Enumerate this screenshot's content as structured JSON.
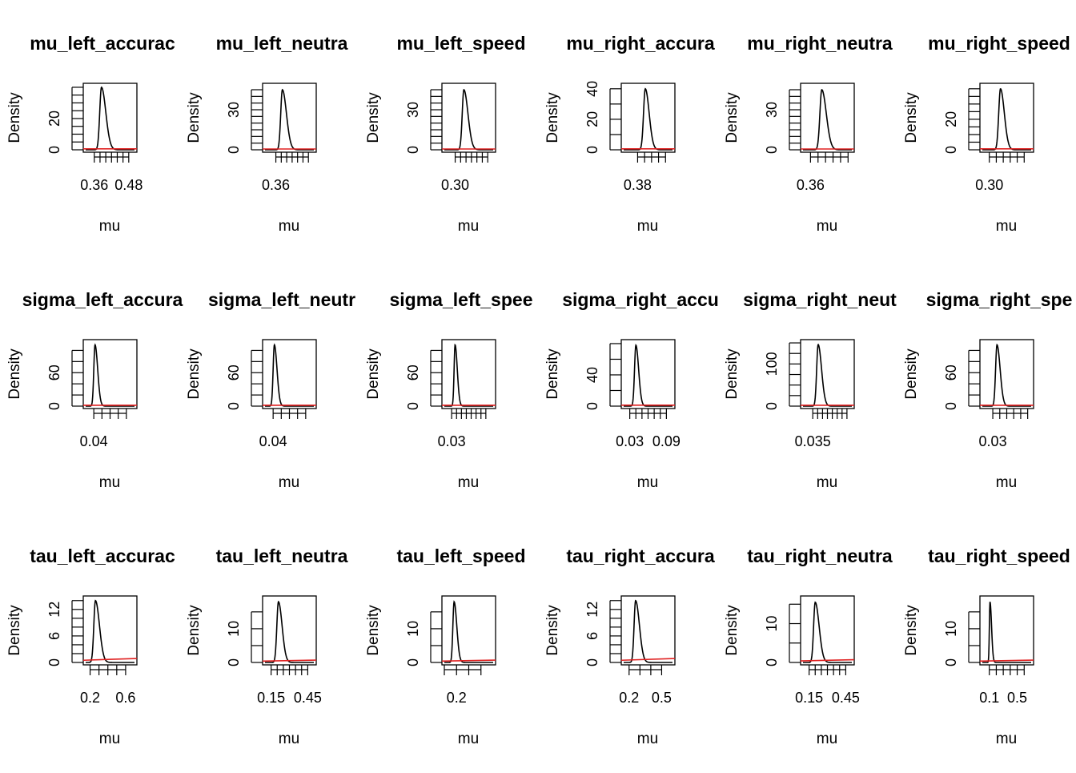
{
  "figure": {
    "xlabel_default": "mu",
    "ylabel_default": "Density",
    "curve_color": "#000000",
    "prior_color": "#e02020"
  },
  "chart_data": [
    {
      "type": "line",
      "title": "mu_left_accurac",
      "xlabel": "mu",
      "ylabel": "Density",
      "xlim": [
        0.33,
        0.5
      ],
      "ylim": [
        0,
        41
      ],
      "xticks": [
        0.36,
        0.38,
        0.4,
        0.42,
        0.44,
        0.46,
        0.48
      ],
      "xtick_labels": {
        "0.36": "0.36",
        "0.48": "0.48"
      },
      "yticks": [
        0,
        5,
        10,
        15,
        20,
        25,
        30,
        35,
        40
      ],
      "ytick_labels": {
        "0": "0",
        "20": "20"
      },
      "peak": {
        "x": 0.385,
        "y": 40
      },
      "sd_left": 0.006,
      "sd_right": 0.015,
      "prior_level": [
        0.6,
        0.6
      ]
    },
    {
      "type": "line",
      "title": "mu_left_neutra",
      "xlabel": "mu",
      "ylabel": "Density",
      "xlim": [
        0.34,
        0.43
      ],
      "ylim": [
        0,
        48
      ],
      "xticks": [
        0.36,
        0.37,
        0.38,
        0.39,
        0.4,
        0.41,
        0.42
      ],
      "xtick_labels": {
        "0.36": "0.36"
      },
      "yticks": [
        0,
        5,
        10,
        15,
        20,
        25,
        30,
        35,
        40,
        45
      ],
      "ytick_labels": {
        "0": "0",
        "30": "30"
      },
      "peak": {
        "x": 0.372,
        "y": 45
      },
      "sd_left": 0.003,
      "sd_right": 0.0075,
      "prior_level": [
        0.6,
        0.6
      ]
    },
    {
      "type": "line",
      "title": "mu_left_speed",
      "xlabel": "mu",
      "ylabel": "Density",
      "xlim": [
        0.28,
        0.37
      ],
      "ylim": [
        0,
        48
      ],
      "xticks": [
        0.3,
        0.31,
        0.32,
        0.33,
        0.34,
        0.35,
        0.36
      ],
      "xtick_labels": {
        "0.30": "0.30"
      },
      "yticks": [
        0,
        5,
        10,
        15,
        20,
        25,
        30,
        35,
        40,
        45
      ],
      "ytick_labels": {
        "0": "0",
        "30": "30"
      },
      "peak": {
        "x": 0.316,
        "y": 45
      },
      "sd_left": 0.003,
      "sd_right": 0.0075,
      "prior_level": [
        0.6,
        0.6
      ]
    },
    {
      "type": "line",
      "title": "mu_right_accura",
      "xlabel": "mu",
      "ylabel": "Density",
      "xlim": [
        0.36,
        0.43
      ],
      "ylim": [
        0,
        42
      ],
      "xticks": [
        0.38,
        0.39,
        0.4,
        0.41,
        0.42
      ],
      "xtick_labels": {
        "0.38": "0.38"
      },
      "yticks": [
        0,
        10,
        20,
        30,
        40
      ],
      "ytick_labels": {
        "0": "0",
        "20": "20",
        "40": "40"
      },
      "peak": {
        "x": 0.391,
        "y": 40
      },
      "sd_left": 0.0025,
      "sd_right": 0.0055,
      "prior_level": [
        0.6,
        0.6
      ]
    },
    {
      "type": "line",
      "title": "mu_right_neutra",
      "xlabel": "mu",
      "ylabel": "Density",
      "xlim": [
        0.35,
        0.415
      ],
      "ylim": [
        0,
        48
      ],
      "xticks": [
        0.36,
        0.37,
        0.38,
        0.39,
        0.4,
        0.41
      ],
      "xtick_labels": {
        "0.36": "0.36"
      },
      "yticks": [
        0,
        5,
        10,
        15,
        20,
        25,
        30,
        35,
        40,
        45
      ],
      "ytick_labels": {
        "0": "0",
        "30": "30"
      },
      "peak": {
        "x": 0.375,
        "y": 45
      },
      "sd_left": 0.0025,
      "sd_right": 0.006,
      "prior_level": [
        0.6,
        0.6
      ]
    },
    {
      "type": "line",
      "title": "mu_right_speed",
      "xlabel": "mu",
      "ylabel": "Density",
      "xlim": [
        0.29,
        0.36
      ],
      "ylim": [
        0,
        42
      ],
      "xticks": [
        0.3,
        0.31,
        0.32,
        0.33,
        0.34,
        0.35
      ],
      "xtick_labels": {
        "0.30": "0.30"
      },
      "yticks": [
        0,
        5,
        10,
        15,
        20,
        25,
        30,
        35,
        40
      ],
      "ytick_labels": {
        "0": "0",
        "20": "20"
      },
      "peak": {
        "x": 0.316,
        "y": 40
      },
      "sd_left": 0.0025,
      "sd_right": 0.0055,
      "prior_level": [
        0.6,
        0.6
      ]
    },
    {
      "type": "line",
      "title": "sigma_left_accura",
      "xlabel": "mu",
      "ylabel": "Density",
      "xlim": [
        0.02,
        0.14
      ],
      "ylim": [
        0,
        115
      ],
      "xticks": [
        0.04,
        0.06,
        0.08,
        0.1,
        0.12
      ],
      "xtick_labels": {
        "0.04": "0.04"
      },
      "yticks": [
        0,
        20,
        40,
        60,
        80,
        100
      ],
      "ytick_labels": {
        "0": "0",
        "60": "60"
      },
      "peak": {
        "x": 0.043,
        "y": 110
      },
      "sd_left": 0.003,
      "sd_right": 0.0065,
      "prior_level": [
        1.5,
        1.5
      ]
    },
    {
      "type": "line",
      "title": "sigma_left_neutr",
      "xlabel": "mu",
      "ylabel": "Density",
      "xlim": [
        0.02,
        0.14
      ],
      "ylim": [
        0,
        115
      ],
      "xticks": [
        0.04,
        0.06,
        0.08,
        0.1,
        0.12
      ],
      "xtick_labels": {
        "0.04": "0.04"
      },
      "yticks": [
        0,
        20,
        40,
        60,
        80,
        100
      ],
      "ytick_labels": {
        "0": "0",
        "60": "60"
      },
      "peak": {
        "x": 0.043,
        "y": 110
      },
      "sd_left": 0.003,
      "sd_right": 0.0065,
      "prior_level": [
        1.5,
        1.5
      ]
    },
    {
      "type": "line",
      "title": "sigma_left_spee",
      "xlabel": "mu",
      "ylabel": "Density",
      "xlim": [
        0.015,
        0.115
      ],
      "ylim": [
        0,
        115
      ],
      "xticks": [
        0.03,
        0.04,
        0.05,
        0.06,
        0.07,
        0.08,
        0.09,
        0.1
      ],
      "xtick_labels": {
        "0.03": "0.03"
      },
      "yticks": [
        0,
        20,
        40,
        60,
        80,
        100
      ],
      "ytick_labels": {
        "0": "0",
        "60": "60"
      },
      "peak": {
        "x": 0.037,
        "y": 110
      },
      "sd_left": 0.002,
      "sd_right": 0.0045,
      "prior_level": [
        1.5,
        1.5
      ]
    },
    {
      "type": "line",
      "title": "sigma_right_accu",
      "xlabel": "mu",
      "ylabel": "Density",
      "xlim": [
        0.02,
        0.1
      ],
      "ylim": [
        0,
        82
      ],
      "xticks": [
        0.03,
        0.04,
        0.05,
        0.06,
        0.07,
        0.08,
        0.09
      ],
      "xtick_labels": {
        "0.03": "0.03",
        "0.09": "0.09"
      },
      "yticks": [
        0,
        20,
        40,
        60,
        80
      ],
      "ytick_labels": {
        "0": "0",
        "40": "40"
      },
      "peak": {
        "x": 0.04,
        "y": 78
      },
      "sd_left": 0.0022,
      "sd_right": 0.0045,
      "prior_level": [
        1.2,
        1.2
      ]
    },
    {
      "type": "line",
      "title": "sigma_right_neut",
      "xlabel": "mu",
      "ylabel": "Density",
      "xlim": [
        0.025,
        0.075
      ],
      "ylim": [
        0,
        152
      ],
      "xticks": [
        0.035,
        0.04,
        0.045,
        0.05,
        0.055,
        0.06,
        0.065,
        0.07
      ],
      "xtick_labels": {
        "0.035": "0.035"
      },
      "yticks": [
        0,
        25,
        50,
        75,
        100,
        125,
        150
      ],
      "ytick_labels": {
        "0": "0",
        "100": "100"
      },
      "peak": {
        "x": 0.0405,
        "y": 146
      },
      "sd_left": 0.0015,
      "sd_right": 0.0035,
      "prior_level": [
        2,
        2
      ]
    },
    {
      "type": "line",
      "title": "sigma_right_spe",
      "xlabel": "mu",
      "ylabel": "Density",
      "xlim": [
        0.015,
        0.085
      ],
      "ylim": [
        0,
        115
      ],
      "xticks": [
        0.03,
        0.04,
        0.05,
        0.06,
        0.07,
        0.08
      ],
      "xtick_labels": {
        "0.03": "0.03"
      },
      "yticks": [
        0,
        20,
        40,
        60,
        80,
        100
      ],
      "ytick_labels": {
        "0": "0",
        "60": "60"
      },
      "peak": {
        "x": 0.036,
        "y": 110
      },
      "sd_left": 0.002,
      "sd_right": 0.0045,
      "prior_level": [
        1.5,
        1.5
      ]
    },
    {
      "type": "line",
      "title": "tau_left_accurac",
      "xlabel": "mu",
      "ylabel": "Density",
      "xlim": [
        0.15,
        0.7
      ],
      "ylim": [
        0,
        14.5
      ],
      "xticks": [
        0.2,
        0.3,
        0.4,
        0.5,
        0.6
      ],
      "xtick_labels": {
        "0.2": "0.2",
        "0.6": "0.6"
      },
      "yticks": [
        0,
        2,
        4,
        6,
        8,
        10,
        12,
        14
      ],
      "ytick_labels": {
        "0": "0",
        "6": "6",
        "12": "12"
      },
      "peak": {
        "x": 0.26,
        "y": 14
      },
      "sd_left": 0.018,
      "sd_right": 0.045,
      "prior_level": [
        0.5,
        0.9
      ]
    },
    {
      "type": "line",
      "title": "tau_left_neutra",
      "xlabel": "mu",
      "ylabel": "Density",
      "xlim": [
        0.1,
        0.5
      ],
      "ylim": [
        0,
        19
      ],
      "xticks": [
        0.15,
        0.2,
        0.25,
        0.3,
        0.35,
        0.4,
        0.45
      ],
      "xtick_labels": {
        "0.15": "0.15",
        "0.45": "0.45"
      },
      "yticks": [
        0,
        5,
        10,
        15
      ],
      "ytick_labels": {
        "0": "0",
        "10": "10"
      },
      "peak": {
        "x": 0.21,
        "y": 18
      },
      "sd_left": 0.013,
      "sd_right": 0.03,
      "prior_level": [
        0.4,
        0.7
      ]
    },
    {
      "type": "line",
      "title": "tau_left_speed",
      "xlabel": "mu",
      "ylabel": "Density",
      "xlim": [
        0.1,
        0.5
      ],
      "ylim": [
        0,
        19
      ],
      "xticks": [
        0.1,
        0.2,
        0.3,
        0.4
      ],
      "xtick_labels": {
        "0.2": "0.2"
      },
      "yticks": [
        0,
        5,
        10,
        15
      ],
      "ytick_labels": {
        "0": "0",
        "10": "10"
      },
      "peak": {
        "x": 0.18,
        "y": 18
      },
      "sd_left": 0.01,
      "sd_right": 0.022,
      "prior_level": [
        0.4,
        0.7
      ]
    },
    {
      "type": "line",
      "title": "tau_right_accura",
      "xlabel": "mu",
      "ylabel": "Density",
      "xlim": [
        0.15,
        0.6
      ],
      "ylim": [
        0,
        14.5
      ],
      "xticks": [
        0.2,
        0.3,
        0.4,
        0.5
      ],
      "xtick_labels": {
        "0.2": "0.2",
        "0.5": "0.5"
      },
      "yticks": [
        0,
        2,
        4,
        6,
        8,
        10,
        12,
        14
      ],
      "ytick_labels": {
        "0": "0",
        "6": "6",
        "12": "12"
      },
      "peak": {
        "x": 0.26,
        "y": 14
      },
      "sd_left": 0.014,
      "sd_right": 0.035,
      "prior_level": [
        0.5,
        0.9
      ]
    },
    {
      "type": "line",
      "title": "tau_right_neutra",
      "xlabel": "mu",
      "ylabel": "Density",
      "xlim": [
        0.1,
        0.5
      ],
      "ylim": [
        0,
        16.5
      ],
      "xticks": [
        0.15,
        0.2,
        0.25,
        0.3,
        0.35,
        0.4,
        0.45
      ],
      "xtick_labels": {
        "0.15": "0.15",
        "0.45": "0.45"
      },
      "yticks": [
        0,
        5,
        10,
        15
      ],
      "ytick_labels": {
        "0": "0",
        "10": "10"
      },
      "peak": {
        "x": 0.2,
        "y": 15.5
      },
      "sd_left": 0.013,
      "sd_right": 0.032,
      "prior_level": [
        0.4,
        0.7
      ]
    },
    {
      "type": "line",
      "title": "tau_right_speed",
      "xlabel": "mu",
      "ylabel": "Density",
      "xlim": [
        0.0,
        0.7
      ],
      "ylim": [
        0,
        19
      ],
      "xticks": [
        0.1,
        0.2,
        0.3,
        0.4,
        0.5,
        0.6
      ],
      "xtick_labels": {
        "0.1": "0.1",
        "0.5": "0.5"
      },
      "yticks": [
        0,
        5,
        10,
        15
      ],
      "ytick_labels": {
        "0": "0",
        "10": "10"
      },
      "peak": {
        "x": 0.11,
        "y": 18
      },
      "sd_left": 0.009,
      "sd_right": 0.022,
      "prior_level": [
        0.4,
        0.7
      ]
    }
  ]
}
